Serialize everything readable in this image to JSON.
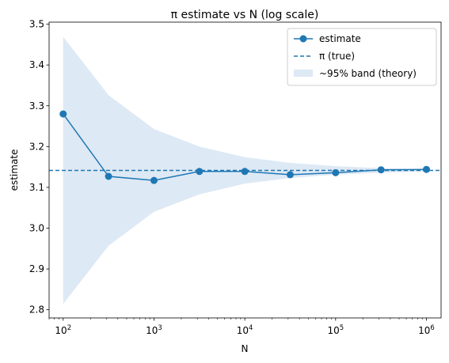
{
  "chart_data": {
    "type": "line",
    "title": "π estimate vs N (log scale)",
    "xlabel": "N",
    "ylabel": "estimate",
    "xscale": "log",
    "xlim": [
      70,
      1450000
    ],
    "ylim": [
      2.78,
      3.505
    ],
    "grid": false,
    "x": [
      100,
      316,
      1000,
      3162,
      10000,
      31623,
      100000,
      316228,
      1000000
    ],
    "series": [
      {
        "name": "estimate",
        "kind": "line-with-markers",
        "color": "#1f77b4",
        "values": [
          3.28,
          3.127,
          3.117,
          3.139,
          3.139,
          3.131,
          3.136,
          3.143,
          3.144
        ]
      }
    ],
    "reference_line": {
      "name": "π (true)",
      "value": 3.14159,
      "style": "dashed",
      "color": "#1f77b4"
    },
    "band": {
      "name": "~95% band (theory)",
      "color": "#c6dbef",
      "lower": [
        2.814,
        2.957,
        3.04,
        3.083,
        3.109,
        3.123,
        3.131,
        3.136,
        3.139
      ],
      "upper": [
        3.469,
        3.326,
        3.243,
        3.2,
        3.174,
        3.16,
        3.152,
        3.147,
        3.144
      ]
    },
    "x_ticks": [
      {
        "value": 100,
        "base": "10",
        "exp": "2"
      },
      {
        "value": 1000,
        "base": "10",
        "exp": "3"
      },
      {
        "value": 10000,
        "base": "10",
        "exp": "4"
      },
      {
        "value": 100000,
        "base": "10",
        "exp": "5"
      },
      {
        "value": 1000000,
        "base": "10",
        "exp": "6"
      }
    ],
    "y_ticks": [
      "2.8",
      "2.9",
      "3.0",
      "3.1",
      "3.2",
      "3.3",
      "3.4",
      "3.5"
    ],
    "legend_position": "top-right"
  }
}
